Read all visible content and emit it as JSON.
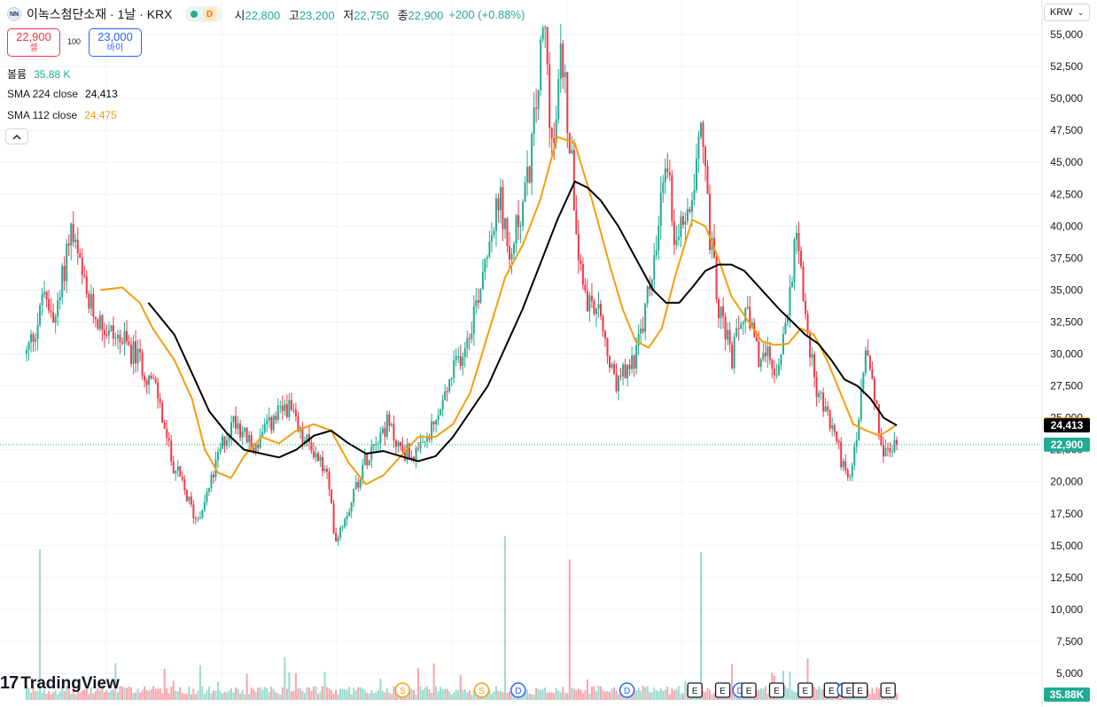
{
  "header": {
    "logo_text": "NN",
    "symbol_title": "이녹스첨단소재 · 1날 · KRX",
    "d_badge": "D",
    "ohlc": [
      {
        "k": "시",
        "v": "22,800"
      },
      {
        "k": "고",
        "v": "23,200"
      },
      {
        "k": "저",
        "v": "22,750"
      },
      {
        "k": "종",
        "v": "22,900"
      }
    ],
    "change": "+200 (+0.88%)"
  },
  "trade": {
    "sell_price": "22,900",
    "sell_label": "셀",
    "spread": "100",
    "buy_price": "23,000",
    "buy_label": "바이"
  },
  "legend": {
    "volume_name": "볼륨",
    "volume_value": "35.88 K",
    "sma224_name": "SMA 224 close",
    "sma224_value": "24,413",
    "sma112_name": "SMA 112 close",
    "sma112_value": "24,475",
    "collapse_icon": "chevron-up-icon"
  },
  "currency": "KRW",
  "brand": "TradingView",
  "colors": {
    "up": "#22ab94",
    "down": "#f23645",
    "sma224": "#000000",
    "sma112": "#f59d0c",
    "last_price": "#22ab94",
    "volume_label": "#22ab94"
  },
  "chart_data": {
    "type": "candlestick",
    "y_axis": {
      "currency": "KRW",
      "min": 2500,
      "max": 57500,
      "ticks": [
        5000,
        7500,
        10000,
        12500,
        15000,
        17500,
        20000,
        22500,
        25000,
        27500,
        30000,
        32500,
        35000,
        37500,
        40000,
        42500,
        45000,
        47500,
        50000,
        52500,
        55000
      ],
      "tick_labels": [
        "5,000",
        "7,500",
        "10,000",
        "12,500",
        "15,000",
        "17,500",
        "20,000",
        "22,500",
        "25,000",
        "27,500",
        "30,000",
        "32,500",
        "35,000",
        "37,500",
        "40,000",
        "42,500",
        "45,000",
        "47,500",
        "50,000",
        "52,500",
        "55,000"
      ]
    },
    "axis_badges": [
      {
        "label": "24,475",
        "value": 24475,
        "color": "#f59d0c"
      },
      {
        "label": "24,413",
        "value": 24413,
        "color": "#000000"
      },
      {
        "label": "22,900",
        "value": 22900,
        "color": "#22ab94"
      }
    ],
    "volume_badge": "35.88K",
    "price_path": [
      [
        0,
        30000
      ],
      [
        0.02,
        34000
      ],
      [
        0.035,
        33000
      ],
      [
        0.05,
        40000
      ],
      [
        0.07,
        34000
      ],
      [
        0.09,
        32000
      ],
      [
        0.11,
        31000
      ],
      [
        0.13,
        29500
      ],
      [
        0.15,
        27000
      ],
      [
        0.165,
        22000
      ],
      [
        0.18,
        19500
      ],
      [
        0.195,
        17000
      ],
      [
        0.21,
        19500
      ],
      [
        0.225,
        23000
      ],
      [
        0.24,
        25000
      ],
      [
        0.26,
        22500
      ],
      [
        0.28,
        24500
      ],
      [
        0.3,
        26000
      ],
      [
        0.315,
        23500
      ],
      [
        0.33,
        22500
      ],
      [
        0.345,
        20500
      ],
      [
        0.355,
        15500
      ],
      [
        0.37,
        18000
      ],
      [
        0.385,
        21000
      ],
      [
        0.4,
        23500
      ],
      [
        0.415,
        24500
      ],
      [
        0.43,
        22500
      ],
      [
        0.45,
        22000
      ],
      [
        0.47,
        24500
      ],
      [
        0.49,
        28500
      ],
      [
        0.505,
        31000
      ],
      [
        0.52,
        35000
      ],
      [
        0.53,
        39000
      ],
      [
        0.545,
        42000
      ],
      [
        0.555,
        37000
      ],
      [
        0.565,
        40500
      ],
      [
        0.575,
        43000
      ],
      [
        0.585,
        49000
      ],
      [
        0.595,
        56000
      ],
      [
        0.605,
        45000
      ],
      [
        0.615,
        54000
      ],
      [
        0.625,
        46000
      ],
      [
        0.635,
        38000
      ],
      [
        0.645,
        34000
      ],
      [
        0.66,
        32500
      ],
      [
        0.675,
        27500
      ],
      [
        0.69,
        28500
      ],
      [
        0.705,
        31000
      ],
      [
        0.715,
        35000
      ],
      [
        0.725,
        38500
      ],
      [
        0.735,
        46000
      ],
      [
        0.745,
        39000
      ],
      [
        0.755,
        40500
      ],
      [
        0.765,
        43000
      ],
      [
        0.775,
        49000
      ],
      [
        0.785,
        39500
      ],
      [
        0.795,
        34000
      ],
      [
        0.81,
        29500
      ],
      [
        0.825,
        33500
      ],
      [
        0.84,
        30000
      ],
      [
        0.855,
        29500
      ],
      [
        0.865,
        28500
      ],
      [
        0.875,
        33500
      ],
      [
        0.885,
        40500
      ],
      [
        0.895,
        33000
      ],
      [
        0.905,
        28000
      ],
      [
        0.915,
        26000
      ],
      [
        0.93,
        23500
      ],
      [
        0.945,
        19500
      ],
      [
        0.955,
        24000
      ],
      [
        0.965,
        30500
      ],
      [
        0.975,
        26000
      ],
      [
        0.985,
        22000
      ],
      [
        1.0,
        22900
      ]
    ],
    "sma112_path": [
      [
        0.085,
        35000
      ],
      [
        0.11,
        35200
      ],
      [
        0.13,
        34000
      ],
      [
        0.145,
        32000
      ],
      [
        0.17,
        29500
      ],
      [
        0.19,
        26500
      ],
      [
        0.205,
        22500
      ],
      [
        0.22,
        20700
      ],
      [
        0.235,
        20300
      ],
      [
        0.25,
        22000
      ],
      [
        0.27,
        23500
      ],
      [
        0.29,
        23000
      ],
      [
        0.31,
        24000
      ],
      [
        0.33,
        24500
      ],
      [
        0.35,
        24000
      ],
      [
        0.37,
        21500
      ],
      [
        0.39,
        19800
      ],
      [
        0.41,
        20500
      ],
      [
        0.43,
        22000
      ],
      [
        0.45,
        23500
      ],
      [
        0.47,
        23500
      ],
      [
        0.49,
        24500
      ],
      [
        0.51,
        27000
      ],
      [
        0.53,
        31500
      ],
      [
        0.55,
        36000
      ],
      [
        0.57,
        38500
      ],
      [
        0.59,
        42000
      ],
      [
        0.61,
        47000
      ],
      [
        0.63,
        46500
      ],
      [
        0.65,
        42000
      ],
      [
        0.67,
        37000
      ],
      [
        0.685,
        33500
      ],
      [
        0.7,
        31000
      ],
      [
        0.715,
        30500
      ],
      [
        0.73,
        32000
      ],
      [
        0.745,
        36000
      ],
      [
        0.765,
        40500
      ],
      [
        0.78,
        40000
      ],
      [
        0.795,
        37500
      ],
      [
        0.81,
        34500
      ],
      [
        0.825,
        33000
      ],
      [
        0.845,
        31000
      ],
      [
        0.86,
        30700
      ],
      [
        0.875,
        30800
      ],
      [
        0.89,
        32000
      ],
      [
        0.905,
        31500
      ],
      [
        0.92,
        29500
      ],
      [
        0.935,
        27000
      ],
      [
        0.95,
        24500
      ],
      [
        0.965,
        24000
      ],
      [
        0.98,
        23600
      ],
      [
        0.99,
        24000
      ],
      [
        1.0,
        24475
      ]
    ],
    "sma224_path": [
      [
        0.14,
        34000
      ],
      [
        0.17,
        31500
      ],
      [
        0.19,
        28500
      ],
      [
        0.21,
        25500
      ],
      [
        0.23,
        23800
      ],
      [
        0.25,
        22500
      ],
      [
        0.27,
        22200
      ],
      [
        0.29,
        21900
      ],
      [
        0.31,
        22500
      ],
      [
        0.33,
        23600
      ],
      [
        0.35,
        24000
      ],
      [
        0.37,
        23000
      ],
      [
        0.39,
        22200
      ],
      [
        0.41,
        22400
      ],
      [
        0.43,
        22000
      ],
      [
        0.45,
        21600
      ],
      [
        0.47,
        22000
      ],
      [
        0.49,
        23500
      ],
      [
        0.51,
        25500
      ],
      [
        0.53,
        27500
      ],
      [
        0.55,
        30500
      ],
      [
        0.57,
        33500
      ],
      [
        0.59,
        37000
      ],
      [
        0.61,
        40500
      ],
      [
        0.63,
        43500
      ],
      [
        0.645,
        43000
      ],
      [
        0.66,
        42000
      ],
      [
        0.68,
        40000
      ],
      [
        0.7,
        37500
      ],
      [
        0.72,
        35000
      ],
      [
        0.735,
        34000
      ],
      [
        0.75,
        34000
      ],
      [
        0.765,
        35200
      ],
      [
        0.78,
        36500
      ],
      [
        0.795,
        37000
      ],
      [
        0.81,
        37000
      ],
      [
        0.825,
        36500
      ],
      [
        0.845,
        35000
      ],
      [
        0.865,
        33500
      ],
      [
        0.88,
        32500
      ],
      [
        0.895,
        31500
      ],
      [
        0.91,
        30800
      ],
      [
        0.925,
        29500
      ],
      [
        0.94,
        28000
      ],
      [
        0.955,
        27500
      ],
      [
        0.97,
        26500
      ],
      [
        0.985,
        25000
      ],
      [
        1.0,
        24413
      ]
    ],
    "events": [
      {
        "x": 0.432,
        "label": "S",
        "color": "#f59d0c"
      },
      {
        "x": 0.523,
        "label": "S",
        "color": "#f59d0c"
      },
      {
        "x": 0.565,
        "label": "D",
        "color": "#2962ff"
      },
      {
        "x": 0.69,
        "label": "D",
        "color": "#2962ff"
      },
      {
        "x": 0.768,
        "label": "E",
        "color": "#131722"
      },
      {
        "x": 0.8,
        "label": "E",
        "color": "#131722"
      },
      {
        "x": 0.82,
        "label": "D",
        "color": "#2962ff"
      },
      {
        "x": 0.83,
        "label": "E",
        "color": "#131722"
      },
      {
        "x": 0.862,
        "label": "E",
        "color": "#131722"
      },
      {
        "x": 0.895,
        "label": "E",
        "color": "#131722"
      },
      {
        "x": 0.925,
        "label": "E",
        "color": "#131722"
      },
      {
        "x": 0.94,
        "label": "D",
        "color": "#2962ff"
      },
      {
        "x": 0.945,
        "label": "E",
        "color": "#131722"
      },
      {
        "x": 0.958,
        "label": "E",
        "color": "#131722"
      },
      {
        "x": 0.99,
        "label": "E",
        "color": "#131722"
      }
    ]
  }
}
